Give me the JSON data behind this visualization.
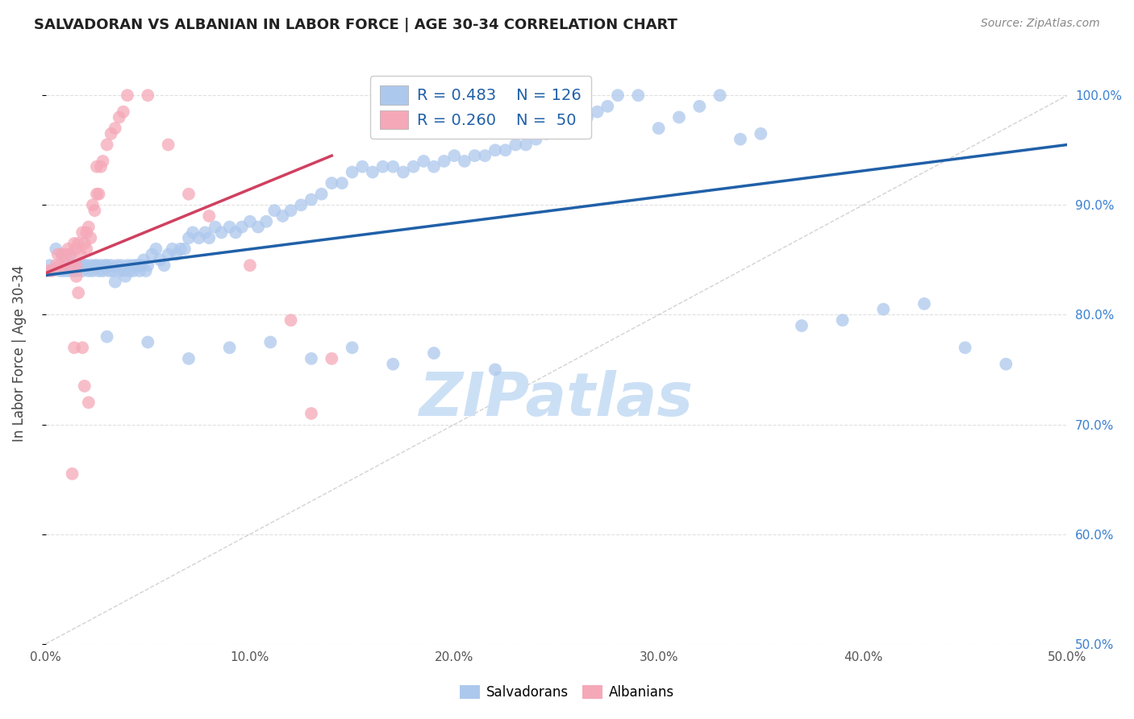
{
  "title": "SALVADORAN VS ALBANIAN IN LABOR FORCE | AGE 30-34 CORRELATION CHART",
  "source": "Source: ZipAtlas.com",
  "ylabel": "In Labor Force | Age 30-34",
  "xlim": [
    0.0,
    0.5
  ],
  "ylim": [
    0.5,
    1.03
  ],
  "xticks": [
    0.0,
    0.1,
    0.2,
    0.3,
    0.4,
    0.5
  ],
  "xtick_labels": [
    "0.0%",
    "10.0%",
    "20.0%",
    "30.0%",
    "40.0%",
    "50.0%"
  ],
  "ytick_vals": [
    0.5,
    0.6,
    0.7,
    0.8,
    0.9,
    1.0
  ],
  "ytick_labels_right": [
    "50.0%",
    "60.0%",
    "70.0%",
    "80.0%",
    "90.0%",
    "100.0%"
  ],
  "legend_r1": "R = 0.483",
  "legend_n1": "N = 126",
  "legend_r2": "R = 0.260",
  "legend_n2": "N =  50",
  "blue_color": "#adc8ed",
  "pink_color": "#f5a8b8",
  "blue_line_color": "#2060a8",
  "pink_line_color": "#d04060",
  "diagonal_color": "#c0c0c0",
  "watermark": "ZIPatlas",
  "watermark_color": "#cce0f5",
  "salvadorans_x": [
    0.002,
    0.005,
    0.007,
    0.008,
    0.009,
    0.01,
    0.011,
    0.012,
    0.013,
    0.014,
    0.015,
    0.016,
    0.017,
    0.018,
    0.019,
    0.02,
    0.021,
    0.022,
    0.023,
    0.024,
    0.025,
    0.026,
    0.027,
    0.028,
    0.029,
    0.03,
    0.031,
    0.032,
    0.033,
    0.034,
    0.035,
    0.036,
    0.037,
    0.038,
    0.039,
    0.04,
    0.041,
    0.042,
    0.043,
    0.044,
    0.045,
    0.046,
    0.047,
    0.048,
    0.049,
    0.05,
    0.052,
    0.054,
    0.056,
    0.058,
    0.06,
    0.062,
    0.064,
    0.066,
    0.068,
    0.07,
    0.072,
    0.075,
    0.078,
    0.08,
    0.083,
    0.086,
    0.09,
    0.093,
    0.096,
    0.1,
    0.104,
    0.108,
    0.112,
    0.116,
    0.12,
    0.125,
    0.13,
    0.135,
    0.14,
    0.145,
    0.15,
    0.155,
    0.16,
    0.165,
    0.17,
    0.175,
    0.18,
    0.185,
    0.19,
    0.195,
    0.2,
    0.205,
    0.21,
    0.215,
    0.22,
    0.225,
    0.23,
    0.235,
    0.24,
    0.245,
    0.25,
    0.255,
    0.26,
    0.265,
    0.27,
    0.275,
    0.28,
    0.29,
    0.3,
    0.31,
    0.32,
    0.33,
    0.34,
    0.35,
    0.37,
    0.39,
    0.41,
    0.43,
    0.45,
    0.47,
    0.03,
    0.05,
    0.07,
    0.09,
    0.11,
    0.13,
    0.15,
    0.17,
    0.19,
    0.22
  ],
  "salvadorans_y": [
    0.845,
    0.86,
    0.84,
    0.855,
    0.84,
    0.845,
    0.84,
    0.855,
    0.84,
    0.845,
    0.84,
    0.845,
    0.845,
    0.84,
    0.845,
    0.845,
    0.84,
    0.845,
    0.84,
    0.845,
    0.845,
    0.84,
    0.845,
    0.84,
    0.845,
    0.845,
    0.84,
    0.845,
    0.84,
    0.83,
    0.845,
    0.84,
    0.845,
    0.84,
    0.835,
    0.845,
    0.84,
    0.845,
    0.84,
    0.845,
    0.845,
    0.84,
    0.845,
    0.85,
    0.84,
    0.845,
    0.855,
    0.86,
    0.85,
    0.845,
    0.855,
    0.86,
    0.855,
    0.86,
    0.86,
    0.87,
    0.875,
    0.87,
    0.875,
    0.87,
    0.88,
    0.875,
    0.88,
    0.875,
    0.88,
    0.885,
    0.88,
    0.885,
    0.895,
    0.89,
    0.895,
    0.9,
    0.905,
    0.91,
    0.92,
    0.92,
    0.93,
    0.935,
    0.93,
    0.935,
    0.935,
    0.93,
    0.935,
    0.94,
    0.935,
    0.94,
    0.945,
    0.94,
    0.945,
    0.945,
    0.95,
    0.95,
    0.955,
    0.955,
    0.96,
    0.965,
    0.97,
    0.97,
    0.975,
    0.98,
    0.985,
    0.99,
    1.0,
    1.0,
    0.97,
    0.98,
    0.99,
    1.0,
    0.96,
    0.965,
    0.79,
    0.795,
    0.805,
    0.81,
    0.77,
    0.755,
    0.78,
    0.775,
    0.76,
    0.77,
    0.775,
    0.76,
    0.77,
    0.755,
    0.765,
    0.75
  ],
  "albanians_x": [
    0.001,
    0.003,
    0.005,
    0.006,
    0.007,
    0.008,
    0.009,
    0.01,
    0.011,
    0.012,
    0.013,
    0.014,
    0.015,
    0.015,
    0.016,
    0.017,
    0.018,
    0.019,
    0.02,
    0.021,
    0.022,
    0.023,
    0.024,
    0.025,
    0.026,
    0.027,
    0.028,
    0.03,
    0.032,
    0.034,
    0.036,
    0.038,
    0.04,
    0.05,
    0.06,
    0.07,
    0.08,
    0.1,
    0.12,
    0.14,
    0.13,
    0.015,
    0.016,
    0.018,
    0.019,
    0.021,
    0.013,
    0.014,
    0.02,
    0.025
  ],
  "albanians_y": [
    0.84,
    0.84,
    0.845,
    0.855,
    0.845,
    0.855,
    0.845,
    0.855,
    0.86,
    0.855,
    0.845,
    0.865,
    0.86,
    0.845,
    0.865,
    0.855,
    0.875,
    0.865,
    0.875,
    0.88,
    0.87,
    0.9,
    0.895,
    0.91,
    0.91,
    0.935,
    0.94,
    0.955,
    0.965,
    0.97,
    0.98,
    0.985,
    1.0,
    1.0,
    0.955,
    0.91,
    0.89,
    0.845,
    0.795,
    0.76,
    0.71,
    0.835,
    0.82,
    0.77,
    0.735,
    0.72,
    0.655,
    0.77,
    0.86,
    0.935
  ],
  "blue_line_x": [
    0.0,
    0.5
  ],
  "blue_line_y": [
    0.836,
    0.955
  ],
  "pink_line_x": [
    0.0,
    0.14
  ],
  "pink_line_y": [
    0.838,
    0.945
  ],
  "diag_line_x": [
    0.0,
    0.5
  ],
  "diag_line_y": [
    0.5,
    1.0
  ],
  "background_color": "#ffffff",
  "grid_color": "#e0e0e0",
  "title_color": "#222222",
  "axis_label_color": "#444444",
  "right_axis_color": "#3a80d0"
}
